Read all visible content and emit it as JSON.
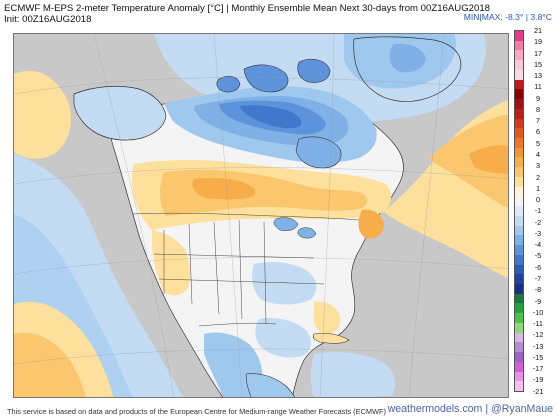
{
  "header": {
    "title": "ECMWF M-EPS 2-meter Temperature Anomaly [°C] | Monthly Ensemble Mean Next 30-days from 00Z16AUG2018",
    "init": "Init: 00Z16AUG2018",
    "minmax": "MIN|MAX: -8.3° | 3.8°C"
  },
  "legend": {
    "ticks": [
      "21",
      "19",
      "17",
      "15",
      "13",
      "11",
      "9",
      "7",
      "5",
      "3",
      "1",
      "-1",
      "-3",
      "-5",
      "-7",
      "-9",
      "-11",
      "-13",
      "-15",
      "-17",
      "-19",
      "-21"
    ],
    "labels": [
      "21",
      "19",
      "17",
      "15",
      "13",
      "11",
      "9",
      "8",
      "7",
      "6",
      "5",
      "4",
      "3",
      "2",
      "1",
      "0",
      "-1",
      "-2",
      "-3",
      "-4",
      "-5",
      "-6",
      "-7",
      "-8",
      "-9",
      "-10",
      "-11",
      "-12",
      "-13",
      "-15",
      "-17",
      "-19",
      "-21"
    ],
    "colors": [
      "#e83a8c",
      "#f27ea8",
      "#f6a8c6",
      "#f9c6da",
      "#fbd9e4",
      "#c0181b",
      "#8b0000",
      "#a51212",
      "#bd2019",
      "#d33a1f",
      "#e4571f",
      "#ef7727",
      "#f49331",
      "#f7ad4a",
      "#fac66e",
      "#fde09c",
      "#fdf4d8",
      "#f4f4f4",
      "#dfeaf6",
      "#c3dbf3",
      "#9fc8ee",
      "#7fb0e6",
      "#5c93db",
      "#4277cc",
      "#2c5ab9",
      "#2340a2",
      "#1c2f86",
      "#1b7a3b",
      "#24a340",
      "#4cc24b",
      "#8fd87d",
      "#d7b8e3",
      "#b88bd4",
      "#9e63c6",
      "#d75fd4",
      "#ea90e6",
      "#f5c0f2"
    ]
  },
  "map": {
    "region": "North America",
    "colors": {
      "ocean": "#c8c8c8",
      "neutral": "#f4f4f4",
      "warm_light": "#fde09c",
      "warm": "#fac66e",
      "warm_mid": "#f7ad4a",
      "cool_light": "#c3dbf3",
      "cool": "#9fc8ee",
      "cool_mid": "#7fb0e6",
      "cool_strong": "#5c93db",
      "cool_deep": "#4277cc",
      "cool_deepest": "#2c5ab9"
    }
  },
  "footer": {
    "credit": "This service is based on data and products of the European Centre for Medium-range Weather Forecasts (ECMWF)",
    "site": "weathermodels.com | @RyanMaue"
  }
}
